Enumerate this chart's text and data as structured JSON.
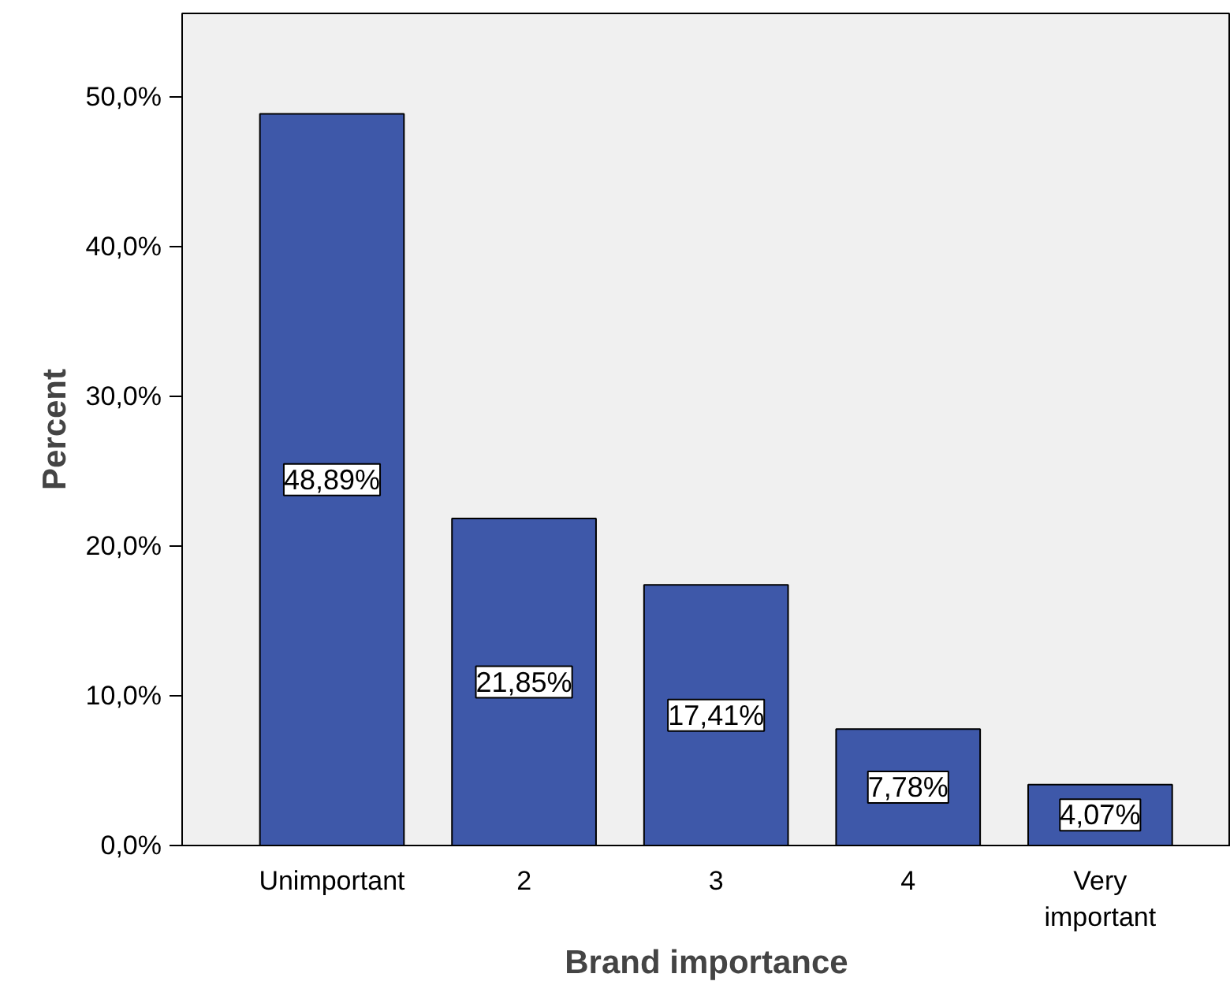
{
  "chart_data": {
    "type": "bar",
    "xlabel": "Brand importance",
    "ylabel": "Percent",
    "categories": [
      "Unimportant",
      "2",
      "3",
      "4",
      "Very important"
    ],
    "values": [
      48.89,
      21.85,
      17.41,
      7.78,
      4.07
    ],
    "value_labels": [
      "48,89%",
      "21,85%",
      "17,41%",
      "7,78%",
      "4,07%"
    ],
    "color": "#3e58a9",
    "ylim": [
      0,
      55.6
    ],
    "yticks": [
      {
        "value": 0,
        "label": "0,0%"
      },
      {
        "value": 10,
        "label": "10,0%"
      },
      {
        "value": 20,
        "label": "20,0%"
      },
      {
        "value": 30,
        "label": "30,0%"
      },
      {
        "value": 40,
        "label": "40,0%"
      },
      {
        "value": 50,
        "label": "50,0%"
      }
    ],
    "grid": false
  }
}
